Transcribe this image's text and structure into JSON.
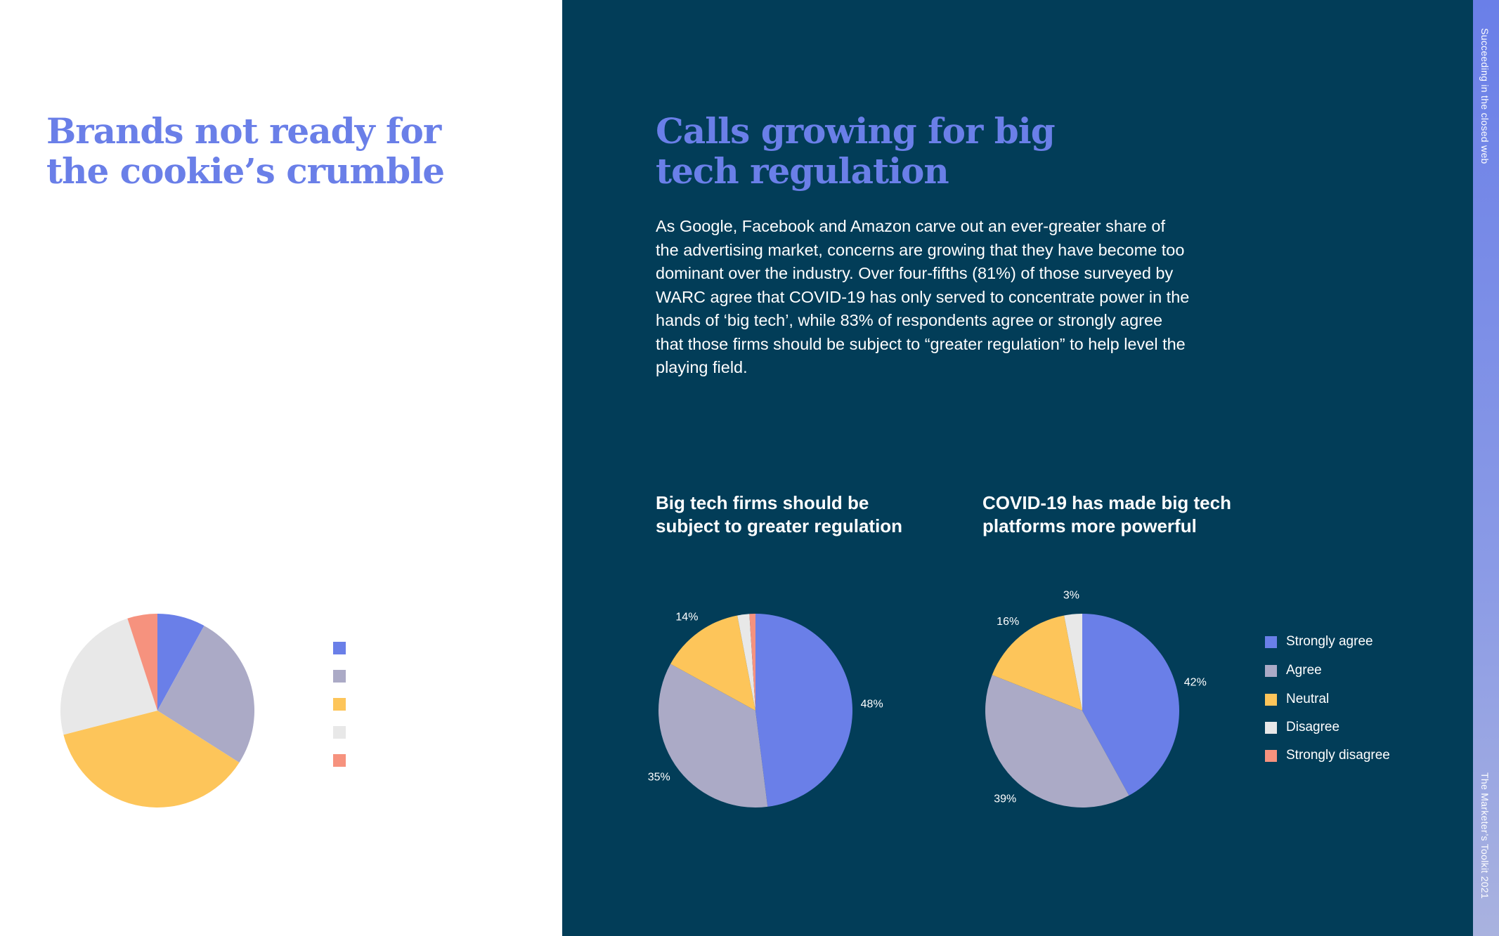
{
  "left": {
    "headline_line1": "Brands not ready for",
    "headline_line2": "the cookie’s crumble"
  },
  "right": {
    "headline_line1": "Calls growing for big",
    "headline_line2": "tech regulation",
    "body": "As Google, Facebook and Amazon carve out an ever-greater share of the advertising market, concerns are growing that they have become too dominant over the industry. Over four-fifths (81%) of those surveyed by WARC agree that COVID-19 has only served to concentrate power in the hands of ‘big tech’, while 83% of respondents agree or strongly agree that those firms should be subject to “greater regulation” to help level the playing field."
  },
  "sidebar": {
    "top_text": "Succeeding in the closed web",
    "bottom_text": "The Marketer’s Toolkit 2021"
  },
  "colors": {
    "strongly_agree": "#6a7fe8",
    "agree": "#abaac6",
    "neutral": "#fdc55a",
    "disagree": "#e8e8e8",
    "strongly_disagree": "#f6927e",
    "navy": "#023d58",
    "accent": "#6a7fe8"
  },
  "legend": {
    "items": [
      {
        "label": "Strongly agree",
        "color": "#6a7fe8"
      },
      {
        "label": "Agree",
        "color": "#abaac6"
      },
      {
        "label": "Neutral",
        "color": "#fdc55a"
      },
      {
        "label": "Disagree",
        "color": "#e8e8e8"
      },
      {
        "label": "Strongly disagree",
        "color": "#f6927e"
      }
    ]
  },
  "chart_data": [
    {
      "type": "pie",
      "title": "Big tech firms should be subject to greater regulation",
      "title_line1": "Big tech firms should be",
      "title_line2": "subject to greater regulation",
      "categories": [
        "Strongly agree",
        "Agree",
        "Neutral",
        "Disagree",
        "Strongly disagree"
      ],
      "values": [
        48,
        35,
        14,
        2,
        1
      ],
      "data_labels": [
        "48%",
        "35%",
        "14%",
        "",
        ""
      ],
      "legend_position": "right"
    },
    {
      "type": "pie",
      "title": "COVID-19 has made big tech platforms more powerful",
      "title_line1": "COVID-19 has made big tech",
      "title_line2": "platforms more powerful",
      "categories": [
        "Strongly agree",
        "Agree",
        "Neutral",
        "Disagree",
        "Strongly disagree"
      ],
      "values": [
        42,
        39,
        16,
        3,
        0
      ],
      "data_labels": [
        "42%",
        "39%",
        "16%",
        "3%",
        ""
      ],
      "legend_position": "right"
    },
    {
      "type": "pie",
      "categories": [
        "Strongly agree",
        "Agree",
        "Neutral",
        "Disagree",
        "Strongly disagree"
      ],
      "values": [
        8,
        26,
        37,
        24,
        5
      ],
      "data_labels": [
        "",
        "",
        "",
        "",
        ""
      ]
    }
  ]
}
